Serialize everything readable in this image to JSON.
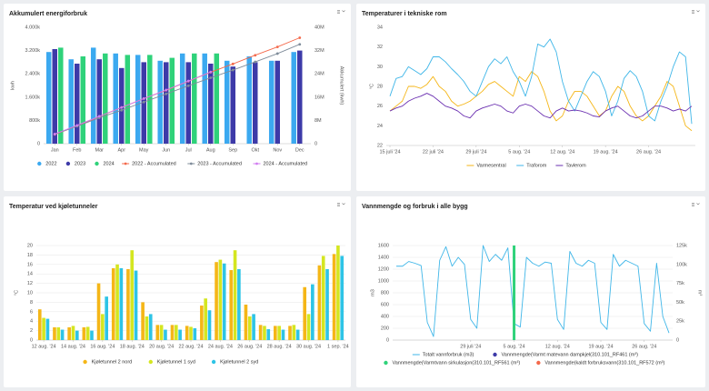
{
  "chart_data": [
    {
      "type": "bar",
      "title": "Akkumulert energiforbruk",
      "ylabel": "kwh",
      "y2label": "Akkumulert (kwh)",
      "categories": [
        "Jan",
        "Feb",
        "Mar",
        "Apr",
        "May",
        "Jun",
        "Jul",
        "Aug",
        "Sep",
        "Okt",
        "Nov",
        "Dec"
      ],
      "series": [
        {
          "name": "2022",
          "color": "#3ba9f0",
          "values": [
            3150000,
            2900000,
            3300000,
            3100000,
            3050000,
            2850000,
            3100000,
            3100000,
            2850000,
            3000000,
            2850000,
            3150000
          ]
        },
        {
          "name": "2023",
          "color": "#3d3aa8",
          "values": [
            3250000,
            2750000,
            2900000,
            2600000,
            2800000,
            2800000,
            2800000,
            2750000,
            2650000,
            2800000,
            2850000,
            3200000
          ]
        },
        {
          "name": "2024",
          "color": "#2fd27a",
          "values": [
            3300000,
            3000000,
            3100000,
            3050000,
            3050000,
            2950000,
            3100000,
            3100000,
            null,
            null,
            null,
            null
          ]
        },
        {
          "name": "2022 - Accumulated",
          "color": "#f4694b",
          "type": "line",
          "axis": "y2",
          "markers": true,
          "values": [
            3150000,
            6050000,
            9350000,
            12450000,
            15500000,
            18350000,
            21450000,
            24550000,
            27400000,
            30400000,
            33250000,
            36400000
          ]
        },
        {
          "name": "2023 - Accumulated",
          "color": "#7f8c9a",
          "type": "line",
          "axis": "y2",
          "markers": true,
          "values": [
            3250000,
            6000000,
            8900000,
            11500000,
            14300000,
            17100000,
            19900000,
            22650000,
            25300000,
            28100000,
            30950000,
            34150000
          ]
        },
        {
          "name": "2024 - Accumulated",
          "color": "#d17cf0",
          "type": "line",
          "axis": "y2",
          "markers": true,
          "values": [
            3300000,
            6300000,
            9400000,
            12450000,
            15500000,
            18450000,
            21550000,
            24650000,
            null,
            null,
            null,
            null
          ]
        }
      ],
      "ylim": [
        0,
        4000000
      ],
      "yticks": [
        0,
        {
          "value": 800000,
          "label": "800k"
        },
        {
          "value": 1600000,
          "label": "1.600k"
        },
        {
          "value": 2400000,
          "label": "2.400k"
        },
        {
          "value": 3200000,
          "label": "3.200k"
        },
        {
          "value": 4000000,
          "label": "4.000k"
        }
      ],
      "y2lim": [
        0,
        40000000
      ],
      "y2ticks": [
        0,
        {
          "value": 8000000,
          "label": "8M"
        },
        {
          "value": 16000000,
          "label": "16M"
        },
        {
          "value": 24000000,
          "label": "24M"
        },
        {
          "value": 32000000,
          "label": "32M"
        },
        {
          "value": 40000000,
          "label": "40M"
        }
      ],
      "grid": false,
      "legend": "bottom"
    },
    {
      "type": "line",
      "title": "Temperaturer i tekniske rom",
      "ylabel": "°C",
      "categories": [
        "15 juli '24",
        null,
        null,
        null,
        null,
        null,
        null,
        "22 juli '24",
        null,
        null,
        null,
        null,
        null,
        null,
        "29 juli '24",
        null,
        null,
        null,
        null,
        null,
        null,
        "5 aug. '24",
        null,
        null,
        null,
        null,
        null,
        null,
        "12 aug. '24",
        null,
        null,
        null,
        null,
        null,
        null,
        "19 aug. '24",
        null,
        null,
        null,
        null,
        null,
        null,
        "26 aug. '24",
        null,
        null,
        null,
        null,
        null,
        null,
        null
      ],
      "series": [
        {
          "name": "Varmesentral",
          "color": "#f5b617",
          "values": [
            25.5,
            26,
            26.5,
            28,
            28,
            27.8,
            28.2,
            29,
            28,
            27.5,
            26.5,
            26,
            26.2,
            26.5,
            27,
            27.5,
            28.2,
            28.5,
            28,
            27.5,
            27,
            29,
            28.5,
            29.5,
            29,
            27.5,
            25.5,
            24.5,
            25,
            26.5,
            27.5,
            27.5,
            27,
            26,
            25,
            25.5,
            27,
            28,
            27.5,
            26,
            25,
            24.5,
            25,
            26,
            27,
            28.5,
            28,
            26,
            24,
            23.5
          ]
        },
        {
          "name": "Traforom",
          "color": "#3fb6e8",
          "values": [
            27,
            28.8,
            29,
            30,
            29.6,
            29.2,
            29.8,
            31,
            31,
            30.5,
            29.8,
            29.2,
            28.5,
            27.5,
            27,
            28.5,
            30,
            30.8,
            30.3,
            31,
            29.5,
            28.5,
            27,
            29,
            32.3,
            32,
            32.8,
            31.5,
            28.5,
            26.5,
            25.5,
            27,
            28.5,
            29.5,
            29,
            27.5,
            25,
            26.5,
            28.8,
            29.6,
            29,
            27.5,
            25,
            24.5,
            26.5,
            28,
            30,
            31.5,
            31,
            24.2
          ]
        },
        {
          "name": "Tavlerom",
          "color": "#6a2fb0",
          "values": [
            25.5,
            25.8,
            26,
            26.5,
            26.8,
            27,
            27.3,
            27,
            26.5,
            26,
            25.8,
            25.5,
            25,
            24.8,
            25.5,
            25.8,
            26,
            26.2,
            26,
            25.5,
            25.3,
            26,
            26.2,
            26,
            25.5,
            25,
            24.8,
            25.5,
            25.8,
            25.5,
            25.6,
            25.5,
            25.3,
            25,
            24.9,
            25.5,
            25.8,
            26,
            25.5,
            25,
            24.8,
            25,
            25.5,
            26,
            26,
            25.8,
            25.5,
            25.7,
            25.5,
            26
          ]
        }
      ],
      "ylim": [
        22,
        34
      ],
      "yticks": [
        22,
        24,
        26,
        28,
        30,
        32,
        34
      ],
      "grid": false,
      "legend": "bottom"
    },
    {
      "type": "bar",
      "title": "Temperatur ved kjøletunneler",
      "ylabel": "°C",
      "categories": [
        "12 aug. '24",
        null,
        "14 aug. '24",
        null,
        "16 aug. '24",
        null,
        "18 aug. '24",
        null,
        "20 aug. '24",
        null,
        "22 aug. '24",
        null,
        "24 aug. '24",
        null,
        "26 aug. '24",
        null,
        "28 aug. '24",
        null,
        "30 aug. '24",
        null,
        "1 sep. '24"
      ],
      "series": [
        {
          "name": "Kjøletunnel 2 nord",
          "color": "#f5b617",
          "values": [
            6.5,
            2.7,
            2.7,
            2.7,
            12,
            15.2,
            15,
            8,
            3.2,
            3.2,
            3,
            7.3,
            16.5,
            14.8,
            7.5,
            3.2,
            3,
            3,
            11.2,
            15.8,
            18.2
          ]
        },
        {
          "name": "Kjøletunnel 1 syd",
          "color": "#d4e620",
          "values": [
            4.7,
            2.7,
            3,
            2.8,
            5.5,
            16,
            19,
            5,
            3.2,
            3.2,
            2.8,
            8.8,
            17,
            19,
            5,
            3,
            3,
            3.2,
            5.5,
            17.8,
            20
          ]
        },
        {
          "name": "Kjøletunnel 2 syd",
          "color": "#2ec4e6",
          "values": [
            4.5,
            2.2,
            2,
            2,
            9.2,
            15.2,
            14.7,
            5.5,
            2.2,
            2.2,
            2.5,
            6.3,
            16.2,
            15,
            5.5,
            2.3,
            2.2,
            2.2,
            11.8,
            15,
            17.8
          ]
        }
      ],
      "ylim": [
        0,
        20
      ],
      "yticks": [
        0,
        2,
        4,
        6,
        8,
        10,
        12,
        14,
        16,
        18,
        20
      ],
      "grid": true,
      "legend": "bottom"
    },
    {
      "type": "line",
      "title": "Vannmengde og forbruk i alle bygg",
      "ylabel": "m3",
      "y2label": "m³",
      "categories": [
        null,
        null,
        null,
        null,
        null,
        null,
        null,
        null,
        null,
        null,
        null,
        null,
        "29 juli '24",
        null,
        null,
        null,
        null,
        null,
        null,
        "5 aug. '24",
        null,
        null,
        null,
        null,
        null,
        null,
        "12 aug. '24",
        null,
        null,
        null,
        null,
        null,
        null,
        "19 aug. '24",
        null,
        null,
        null,
        null,
        null,
        null,
        "26 aug. '24",
        null,
        null,
        null,
        null
      ],
      "series": [
        {
          "name": "Totalt vannforbruk (m3)",
          "color": "#3fb6e8",
          "values": [
            1250,
            1250,
            1330,
            1300,
            1260,
            300,
            60,
            1350,
            1580,
            1250,
            1400,
            1280,
            350,
            200,
            1600,
            1330,
            1450,
            1350,
            1560,
            280,
            220,
            1400,
            1300,
            1250,
            1320,
            1300,
            350,
            180,
            1500,
            1300,
            1250,
            1350,
            1300,
            300,
            180,
            1450,
            1250,
            1350,
            1300,
            1250,
            280,
            150,
            1300,
            400,
            120
          ]
        },
        {
          "name": "Vannmengde(Varmt matevann dampkjel(310.101_RF461 (m³)",
          "color": "#3d3aa8",
          "type": "bar",
          "axis": "y2",
          "values": [
            null,
            null,
            null,
            null,
            null,
            null,
            null,
            null,
            null,
            null,
            null,
            null,
            null,
            null,
            null,
            null,
            null,
            null,
            null,
            null,
            null,
            null,
            null,
            null,
            null,
            null,
            null,
            null,
            null,
            null,
            null,
            null,
            null,
            null,
            null,
            null,
            null,
            null,
            null,
            null,
            null,
            null,
            null,
            null,
            null
          ]
        },
        {
          "name": "Vannmengde(Varmtvann sirkulasjon(310.101_RF561 (m³)",
          "color": "#2fd27a",
          "type": "bar",
          "axis": "y2",
          "values": [
            null,
            null,
            null,
            null,
            null,
            null,
            null,
            null,
            null,
            null,
            null,
            null,
            null,
            null,
            null,
            null,
            null,
            null,
            null,
            125000,
            null,
            null,
            null,
            null,
            null,
            null,
            null,
            null,
            null,
            null,
            null,
            null,
            null,
            null,
            null,
            null,
            null,
            null,
            null,
            null,
            null,
            null,
            null,
            null,
            null
          ]
        },
        {
          "name": "Vannmengde(kaldt forbruksvann(310.101_RF572 (m³)",
          "color": "#f4694b",
          "type": "bar",
          "axis": "y2",
          "values": [
            null,
            null,
            null,
            null,
            null,
            null,
            null,
            null,
            null,
            null,
            null,
            null,
            null,
            null,
            null,
            null,
            null,
            null,
            null,
            null,
            null,
            null,
            null,
            null,
            null,
            null,
            null,
            null,
            null,
            null,
            null,
            null,
            null,
            null,
            null,
            null,
            null,
            null,
            null,
            null,
            null,
            null,
            null,
            null,
            null
          ]
        }
      ],
      "ylim": [
        0,
        1600
      ],
      "yticks": [
        0,
        200,
        400,
        600,
        800,
        1000,
        1200,
        1400,
        1600
      ],
      "y2lim": [
        0,
        125000
      ],
      "y2ticks": [
        0,
        {
          "value": 25000,
          "label": "25k"
        },
        {
          "value": 50000,
          "label": "50k"
        },
        {
          "value": 75000,
          "label": "75k"
        },
        {
          "value": 100000,
          "label": "100k"
        },
        {
          "value": 125000,
          "label": "125k"
        }
      ],
      "grid": true,
      "legend": "bottom"
    }
  ]
}
